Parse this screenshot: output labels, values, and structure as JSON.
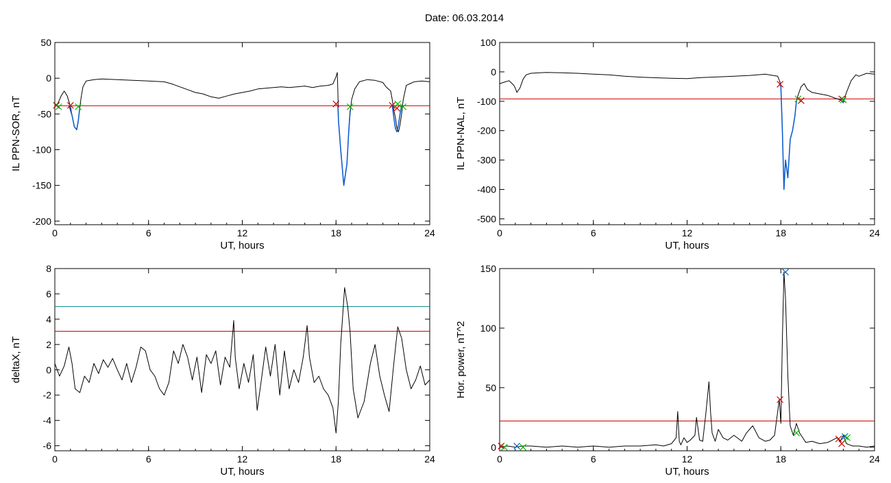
{
  "figure": {
    "title": "Date:  06.03.2014"
  },
  "chart_data": [
    {
      "id": "tl",
      "type": "line",
      "title": "",
      "xlabel": "UT, hours",
      "ylabel": "IL PPN-SOR, nT",
      "xlim": [
        0,
        24
      ],
      "ylim": [
        -205,
        50
      ],
      "xticks": [
        0,
        6,
        12,
        18,
        24
      ],
      "yticks": [
        -200,
        -150,
        -100,
        -50,
        0,
        50
      ],
      "grid": false,
      "series": [
        {
          "color": "#000000",
          "x": [
            0,
            0.2,
            0.4,
            0.6,
            0.8,
            1.0,
            1.1,
            1.25,
            1.4,
            1.5,
            1.6,
            1.7,
            1.8,
            2.0,
            2.5,
            3,
            4,
            5,
            6,
            7,
            7.5,
            8,
            8.5,
            9,
            9.5,
            10,
            10.5,
            11,
            11.5,
            12,
            12.5,
            13,
            13.5,
            14,
            14.5,
            15,
            15.5,
            16,
            16.5,
            17,
            17.5,
            17.8,
            18.0,
            18.08,
            18.12,
            18.16,
            18.3,
            18.5,
            18.7,
            18.8,
            18.9,
            19.0,
            19.2,
            19.5,
            20,
            20.5,
            21,
            21.2,
            21.5,
            21.6,
            21.7,
            21.8,
            21.9,
            22.0,
            22.1,
            22.2,
            22.3,
            22.5,
            22.7,
            23,
            23.5,
            24
          ],
          "y": [
            -40,
            -35,
            -25,
            -18,
            -25,
            -40,
            -52,
            -68,
            -72,
            -60,
            -40,
            -25,
            -12,
            -4,
            -2,
            -1,
            -2,
            -3,
            -4,
            -5,
            -8,
            -12,
            -16,
            -20,
            -22,
            -26,
            -28,
            -25,
            -22,
            -20,
            -18,
            -15,
            -14,
            -13,
            -12,
            -13,
            -12,
            -11,
            -13,
            -11,
            -10,
            -8,
            2,
            8,
            -20,
            -60,
            -100,
            -150,
            -120,
            -80,
            -50,
            -30,
            -15,
            -5,
            -2,
            -3,
            -6,
            -12,
            -18,
            -30,
            -45,
            -55,
            -70,
            -75,
            -65,
            -50,
            -30,
            -10,
            -8,
            -5,
            -4,
            -5
          ]
        },
        {
          "color": "#1060d0",
          "x": [
            0.9,
            1.1,
            1.25,
            1.4,
            1.5,
            1.6
          ],
          "y": [
            -38,
            -52,
            -68,
            -72,
            -60,
            -40
          ]
        },
        {
          "color": "#1060d0",
          "x": [
            18.12,
            18.16,
            18.3,
            18.5,
            18.7,
            18.8,
            18.9
          ],
          "y": [
            -38,
            -60,
            -100,
            -150,
            -120,
            -80,
            -45
          ]
        },
        {
          "color": "#1060d0",
          "x": [
            21.6,
            21.7,
            21.8,
            21.9,
            22.0,
            22.1,
            22.2
          ],
          "y": [
            -38,
            -55,
            -70,
            -75,
            -65,
            -50,
            -38
          ]
        }
      ],
      "hlines": [
        {
          "y": -38.5,
          "color": "#cc0000"
        }
      ],
      "markers": [
        {
          "x": 0.1,
          "y": -38,
          "color": "#cc0000"
        },
        {
          "x": 0.25,
          "y": -40,
          "color": "#00bb00"
        },
        {
          "x": 1.0,
          "y": -38,
          "color": "#cc0000"
        },
        {
          "x": 1.5,
          "y": -40,
          "color": "#00bb00"
        },
        {
          "x": 18.0,
          "y": -36,
          "color": "#cc0000"
        },
        {
          "x": 18.9,
          "y": -40,
          "color": "#00bb00"
        },
        {
          "x": 21.6,
          "y": -38,
          "color": "#cc0000"
        },
        {
          "x": 21.9,
          "y": -42,
          "color": "#cc0000"
        },
        {
          "x": 21.95,
          "y": -36,
          "color": "#00bb00"
        },
        {
          "x": 22.3,
          "y": -40,
          "color": "#00bb00"
        }
      ]
    },
    {
      "id": "tr",
      "type": "line",
      "title": "",
      "xlabel": "UT, hours",
      "ylabel": "IL PPN-NAL, nT",
      "xlim": [
        0,
        24
      ],
      "ylim": [
        -520,
        100
      ],
      "xticks": [
        0,
        6,
        12,
        18,
        24
      ],
      "yticks": [
        -500,
        -400,
        -300,
        -200,
        -100,
        0,
        100
      ],
      "grid": false,
      "series": [
        {
          "color": "#000000",
          "x": [
            0,
            0.3,
            0.6,
            0.9,
            1.0,
            1.1,
            1.3,
            1.5,
            1.7,
            2.0,
            2.5,
            3,
            4,
            5,
            6,
            7,
            8,
            9,
            10,
            11,
            12,
            12.5,
            13,
            14,
            15,
            16,
            16.5,
            17,
            17.5,
            17.8,
            17.95,
            18.0,
            18.1,
            18.2,
            18.3,
            18.45,
            18.6,
            18.75,
            18.9,
            19.0,
            19.1,
            19.3,
            19.5,
            19.7,
            20,
            20.5,
            21,
            21.5,
            21.8,
            22.0,
            22.2,
            22.5,
            22.8,
            23,
            23.5,
            24
          ],
          "y": [
            -40,
            -35,
            -30,
            -45,
            -55,
            -70,
            -55,
            -25,
            -10,
            -5,
            -3,
            -2,
            -3,
            -5,
            -8,
            -10,
            -15,
            -18,
            -20,
            -22,
            -23,
            -21,
            -19,
            -17,
            -15,
            -12,
            -10,
            -8,
            -12,
            -15,
            -35,
            -50,
            -200,
            -400,
            -300,
            -360,
            -230,
            -200,
            -150,
            -100,
            -80,
            -50,
            -40,
            -60,
            -70,
            -75,
            -80,
            -90,
            -95,
            -105,
            -70,
            -30,
            -10,
            -15,
            -5,
            -8
          ]
        },
        {
          "color": "#1060d0",
          "x": [
            17.95,
            18.0,
            18.1,
            18.2,
            18.3,
            18.45,
            18.6,
            18.75,
            18.9,
            19.0
          ],
          "y": [
            -45,
            -50,
            -200,
            -400,
            -300,
            -360,
            -230,
            -200,
            -150,
            -100
          ]
        },
        {
          "color": "#1060d0",
          "x": [
            21.8,
            22.0,
            22.05
          ],
          "y": [
            -92,
            -105,
            -90
          ]
        }
      ],
      "hlines": [
        {
          "y": -92,
          "color": "#cc0000"
        }
      ],
      "markers": [
        {
          "x": 17.95,
          "y": -42,
          "color": "#cc0000"
        },
        {
          "x": 19.1,
          "y": -92,
          "color": "#00bb00"
        },
        {
          "x": 19.3,
          "y": -98,
          "color": "#cc0000"
        },
        {
          "x": 21.9,
          "y": -92,
          "color": "#cc0000"
        },
        {
          "x": 22.0,
          "y": -95,
          "color": "#00bb00"
        }
      ]
    },
    {
      "id": "bl",
      "type": "line",
      "title": "",
      "xlabel": "UT, hours",
      "ylabel": "deltaX, nT",
      "xlim": [
        0,
        24
      ],
      "ylim": [
        -6.4,
        8
      ],
      "xticks": [
        0,
        6,
        12,
        18,
        24
      ],
      "yticks": [
        -6,
        -4,
        -2,
        0,
        2,
        4,
        6,
        8
      ],
      "grid": false,
      "series": [
        {
          "color": "#000000",
          "x": [
            0,
            0.3,
            0.6,
            0.9,
            1.1,
            1.3,
            1.6,
            1.9,
            2.2,
            2.5,
            2.8,
            3.1,
            3.4,
            3.7,
            4.0,
            4.3,
            4.6,
            4.9,
            5.2,
            5.5,
            5.8,
            6.1,
            6.4,
            6.7,
            7.0,
            7.3,
            7.6,
            7.9,
            8.2,
            8.5,
            8.8,
            9.1,
            9.4,
            9.7,
            10.0,
            10.3,
            10.6,
            10.9,
            11.2,
            11.45,
            11.55,
            11.8,
            12.1,
            12.4,
            12.7,
            12.95,
            13.2,
            13.5,
            13.8,
            14.1,
            14.4,
            14.7,
            15.0,
            15.3,
            15.6,
            15.9,
            16.15,
            16.3,
            16.6,
            16.9,
            17.2,
            17.5,
            17.8,
            18.0,
            18.15,
            18.3,
            18.55,
            18.75,
            18.9,
            19.1,
            19.4,
            19.8,
            20.2,
            20.5,
            20.8,
            21.1,
            21.4,
            21.7,
            21.95,
            22.2,
            22.5,
            22.8,
            23.1,
            23.4,
            23.7,
            24
          ],
          "y": [
            0.5,
            -0.5,
            0.3,
            1.8,
            0.5,
            -1.5,
            -1.8,
            -0.5,
            -1.0,
            0.5,
            -0.3,
            0.8,
            0.2,
            0.9,
            0.0,
            -0.8,
            0.5,
            -1.0,
            0.2,
            1.8,
            1.5,
            0.0,
            -0.5,
            -1.5,
            -2.0,
            -1.0,
            1.5,
            0.5,
            2.0,
            1.0,
            -0.8,
            1.0,
            -1.8,
            1.2,
            0.5,
            1.5,
            -1.2,
            1.0,
            0.2,
            3.9,
            1.0,
            -1.5,
            0.5,
            -1.0,
            1.2,
            -3.2,
            -1.0,
            1.8,
            -0.5,
            2.0,
            -2.0,
            1.5,
            -1.5,
            0.0,
            -1.0,
            1.0,
            3.5,
            1.0,
            -1.0,
            -0.5,
            -1.5,
            -2.0,
            -3.0,
            -5.0,
            -2.5,
            2.0,
            6.5,
            5.0,
            3.0,
            -1.5,
            -3.8,
            -2.5,
            0.5,
            2.0,
            -0.5,
            -2.0,
            -3.3,
            0.5,
            3.4,
            2.5,
            0.0,
            -1.5,
            -0.8,
            0.3,
            -1.2,
            -0.8
          ]
        }
      ],
      "hlines": [
        {
          "y": 5.0,
          "color": "#008888"
        },
        {
          "y": 3.05,
          "color": "#cc0000"
        }
      ],
      "markers": []
    },
    {
      "id": "br",
      "type": "line",
      "title": "",
      "xlabel": "UT, hours",
      "ylabel": "Hor. power, nT^2",
      "xlim": [
        0,
        24
      ],
      "ylim": [
        -3,
        150
      ],
      "xticks": [
        0,
        6,
        12,
        18,
        24
      ],
      "yticks": [
        0,
        50,
        100,
        150
      ],
      "grid": false,
      "series": [
        {
          "color": "#000000",
          "x": [
            0,
            0.5,
            1.0,
            1.5,
            2,
            3,
            4,
            5,
            6,
            7,
            8,
            9,
            10,
            10.5,
            11,
            11.3,
            11.4,
            11.5,
            11.6,
            11.8,
            12.0,
            12.2,
            12.5,
            12.6,
            12.8,
            13.0,
            13.2,
            13.4,
            13.5,
            13.6,
            13.8,
            14.0,
            14.3,
            14.6,
            15.0,
            15.5,
            15.8,
            16.2,
            16.6,
            17.0,
            17.3,
            17.6,
            17.8,
            17.9,
            18.0,
            18.1,
            18.2,
            18.3,
            18.45,
            18.6,
            18.8,
            19.0,
            19.2,
            19.4,
            19.6,
            20.0,
            20.5,
            21.0,
            21.3,
            21.6,
            21.8,
            22.0,
            22.2,
            22.4,
            22.6,
            23.0,
            23.5,
            24
          ],
          "y": [
            0,
            1,
            0,
            1,
            1,
            0,
            1,
            0,
            1,
            0,
            1,
            1,
            2,
            1,
            3,
            8,
            30,
            5,
            2,
            8,
            4,
            6,
            10,
            25,
            6,
            5,
            28,
            55,
            30,
            12,
            5,
            15,
            8,
            6,
            10,
            5,
            12,
            18,
            8,
            5,
            6,
            10,
            30,
            40,
            20,
            90,
            147,
            125,
            60,
            18,
            10,
            20,
            12,
            8,
            4,
            5,
            3,
            4,
            6,
            8,
            5,
            10,
            3,
            2,
            1,
            1,
            0,
            1
          ]
        }
      ],
      "hlines": [
        {
          "y": 22,
          "color": "#cc0000"
        }
      ],
      "markers": [
        {
          "x": 0.1,
          "y": 1,
          "color": "#cc0000"
        },
        {
          "x": 0.3,
          "y": 0,
          "color": "#00bb00"
        },
        {
          "x": 1.1,
          "y": 1,
          "color": "#0066cc"
        },
        {
          "x": 1.5,
          "y": 0,
          "color": "#00bb00"
        },
        {
          "x": 17.95,
          "y": 40,
          "color": "#cc0000"
        },
        {
          "x": 18.3,
          "y": 147,
          "color": "#0066cc"
        },
        {
          "x": 19.0,
          "y": 12,
          "color": "#00bb00"
        },
        {
          "x": 21.7,
          "y": 7,
          "color": "#cc0000"
        },
        {
          "x": 21.9,
          "y": 3,
          "color": "#cc0000"
        },
        {
          "x": 22.1,
          "y": 9,
          "color": "#0066cc"
        },
        {
          "x": 22.25,
          "y": 8,
          "color": "#00bb00"
        }
      ]
    }
  ]
}
